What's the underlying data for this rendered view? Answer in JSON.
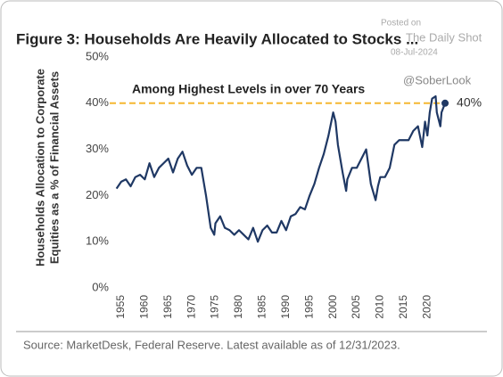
{
  "chart_data": {
    "type": "line",
    "title": "Figure 3: Households Are Heavily Allocated to Stocks ...",
    "ylabel": [
      "Households Allocation to Corporate",
      "Equities as a % of Financial Assets"
    ],
    "annotation": "Among Highest Levels in over 70 Years",
    "reference_value": 40,
    "reference_color": "#f5b731",
    "last_label": "40%",
    "source": "Source: MarketDesk, Federal Reserve. Latest available as of 12/31/2023.",
    "watermark": [
      "Posted on",
      "The Daily Shot",
      "08-Jul-2024",
      "@SoberLook"
    ],
    "xlim": [
      1953.5,
      2024.5
    ],
    "ylim": [
      0,
      50
    ],
    "xticks": [
      1955,
      1960,
      1965,
      1970,
      1975,
      1980,
      1985,
      1990,
      1995,
      2000,
      2005,
      2010,
      2015,
      2020
    ],
    "yticks": [
      {
        "value": 0,
        "label": "0%"
      },
      {
        "value": 10,
        "label": "10%"
      },
      {
        "value": 20,
        "label": "20%"
      },
      {
        "value": 30,
        "label": "30%"
      },
      {
        "value": 40,
        "label": "40%"
      },
      {
        "value": 50,
        "label": "50%"
      }
    ],
    "x": [
      1954,
      1955,
      1956,
      1957,
      1958,
      1959,
      1960,
      1961,
      1962,
      1963,
      1964,
      1965,
      1966,
      1967,
      1968,
      1969,
      1970,
      1971,
      1972,
      1973,
      1974,
      1974.75,
      1975,
      1976,
      1977,
      1978,
      1979,
      1980,
      1981,
      1982,
      1983,
      1984,
      1985,
      1986,
      1987,
      1988,
      1989,
      1990,
      1991,
      1992,
      1993,
      1994,
      1995,
      1996,
      1997,
      1998,
      1999,
      2000,
      2000.5,
      2001,
      2002,
      2002.75,
      2003,
      2004,
      2005,
      2006,
      2007,
      2008,
      2009,
      2009.5,
      2010,
      2011,
      2012,
      2013,
      2014,
      2015,
      2016,
      2017,
      2018,
      2018.9,
      2019.5,
      2020,
      2020.5,
      2021,
      2021.75,
      2022,
      2022.75,
      2023,
      2023.75
    ],
    "series": [
      {
        "name": "Households Allocation",
        "color": "#1f3864",
        "values": [
          21.5,
          23,
          23.5,
          22,
          24,
          24.5,
          23.5,
          27,
          24,
          26,
          27,
          28,
          25,
          28,
          29.5,
          26.5,
          24.5,
          26,
          26,
          20,
          13,
          11.5,
          14,
          15.5,
          13,
          12.5,
          11.5,
          12.5,
          11.5,
          10.5,
          13,
          10,
          12.5,
          13.5,
          12,
          12,
          14.5,
          12.5,
          15.5,
          16,
          17.5,
          17,
          20,
          22.5,
          26,
          29,
          33,
          38,
          36,
          31,
          25,
          21,
          23.5,
          26,
          26,
          28,
          30,
          22.5,
          19,
          22,
          24,
          24,
          26,
          31,
          32,
          32,
          32,
          34,
          35,
          30.5,
          36,
          33,
          38,
          41,
          41.5,
          38,
          35,
          38,
          40
        ]
      }
    ]
  }
}
